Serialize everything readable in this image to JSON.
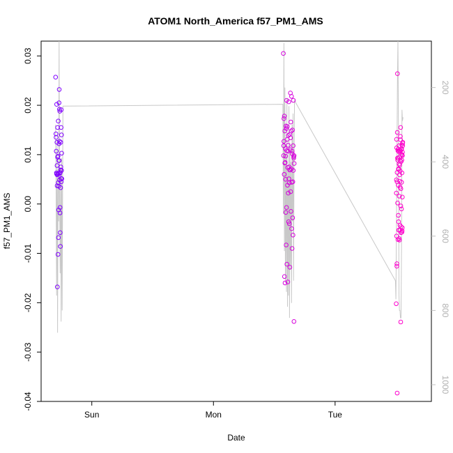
{
  "chart_data": {
    "type": "scatter",
    "title": "ATOM1 North_America f57_PM1_AMS",
    "xlabel": "Date",
    "ylabel": "f57_PM1_AMS",
    "x_ticks": [
      "Sun",
      "Mon",
      "Tue"
    ],
    "x_tick_positions_hours_after_sat_midnight": [
      24,
      48,
      72
    ],
    "xlim_hours": [
      14,
      91
    ],
    "ylim": [
      -0.04,
      0.033
    ],
    "y_ticks": [
      "0.03",
      "0.02",
      "0.01",
      "0.00",
      "-0.01",
      "-0.02",
      "-0.03",
      "-0.04"
    ],
    "y_tick_values": [
      0.03,
      0.02,
      0.01,
      0.0,
      -0.01,
      -0.02,
      -0.03,
      -0.04
    ],
    "y2_ticks": [
      "200",
      "400",
      "600",
      "800",
      "1000"
    ],
    "y2_tick_values": [
      200,
      400,
      600,
      800,
      1000
    ],
    "y2_lim": [
      1045,
      75
    ],
    "y2_inverted": true,
    "grid": false,
    "point_color_gradient": [
      "#7f00ff",
      "#ff00cc"
    ],
    "altitude_line_color": "#c8c8c8",
    "series": [
      {
        "points": [
          [
            16.86,
            0.0257
          ],
          [
            16.93,
            0.0142
          ],
          [
            16.98,
            0.0107
          ],
          [
            17.02,
            0.0063
          ],
          [
            17.07,
            0.0202
          ],
          [
            17.12,
            0.0125
          ],
          [
            17.16,
            0.0037
          ],
          [
            17.21,
            -0.0168
          ],
          [
            17.25,
            0.0155
          ],
          [
            17.29,
            0.0061
          ],
          [
            17.33,
            -0.0102
          ],
          [
            17.37,
            0.0043
          ],
          [
            17.41,
            -0.0068
          ],
          [
            17.45,
            -0.0012
          ],
          [
            17.49,
            0.0088
          ],
          [
            17.53,
            0.0205
          ],
          [
            17.57,
            0.0232
          ],
          [
            17.61,
            0.0192
          ],
          [
            17.65,
            0.0127
          ],
          [
            17.69,
            0.0062
          ],
          [
            17.73,
            -0.0018
          ],
          [
            17.77,
            -0.0058
          ],
          [
            17.81,
            -0.0086
          ],
          [
            17.85,
            0.0033
          ],
          [
            17.89,
            0.0075
          ],
          [
            17.93,
            0.0052
          ],
          [
            17.97,
            0.0191
          ],
          [
            18.01,
            0.014
          ],
          [
            18.05,
            0.0103
          ],
          [
            18.09,
            0.0051
          ],
          [
            16.95,
            0.0135
          ],
          [
            17.05,
            0.0061
          ],
          [
            17.15,
            0.0078
          ],
          [
            17.24,
            0.0095
          ],
          [
            17.34,
            0.0097
          ],
          [
            17.44,
            0.0062
          ],
          [
            17.54,
            0.0122
          ],
          [
            17.64,
            0.0049
          ],
          [
            17.74,
            -0.0007
          ],
          [
            17.84,
            0.0069
          ],
          [
            17.94,
            0.0155
          ],
          [
            18.03,
            0.0068
          ],
          [
            17.18,
            0.0059
          ],
          [
            17.38,
            0.0168
          ],
          [
            17.58,
            0.0088
          ],
          [
            17.78,
            0.0064
          ],
          [
            17.98,
            0.0045
          ],
          [
            17.48,
            0.0036
          ],
          [
            17.68,
            0.0188
          ],
          [
            17.88,
            0.0125
          ]
        ]
      },
      {
        "points": [
          [
            61.8,
            0.0305
          ],
          [
            61.86,
            0.0118
          ],
          [
            61.91,
            0.0173
          ],
          [
            61.96,
            0.006
          ],
          [
            62.02,
            -0.0147
          ],
          [
            62.07,
            0.0148
          ],
          [
            62.12,
            -0.016
          ],
          [
            62.18,
            0.0112
          ],
          [
            62.23,
            0.005
          ],
          [
            62.28,
            -0.0017
          ],
          [
            62.34,
            -0.0083
          ],
          [
            62.39,
            0.0153
          ],
          [
            62.44,
            0.021
          ],
          [
            62.5,
            -0.0122
          ],
          [
            62.55,
            0.0131
          ],
          [
            62.6,
            0.0038
          ],
          [
            62.66,
            -0.0158
          ],
          [
            62.71,
            0.0107
          ],
          [
            62.76,
            0.0022
          ],
          [
            62.82,
            -0.0036
          ],
          [
            62.87,
            0.0207
          ],
          [
            62.92,
            0.0075
          ],
          [
            62.98,
            -0.004
          ],
          [
            63.03,
            0.0141
          ],
          [
            63.08,
            -0.0128
          ],
          [
            63.14,
            0.0069
          ],
          [
            63.19,
            0.0225
          ],
          [
            63.24,
            0.0025
          ],
          [
            63.3,
            -0.0015
          ],
          [
            63.35,
            0.0148
          ],
          [
            63.4,
            0.0218
          ],
          [
            63.46,
            0.0044
          ],
          [
            63.51,
            -0.009
          ],
          [
            63.56,
            0.0102
          ],
          [
            63.62,
            -0.0028
          ],
          [
            63.67,
            0.0045
          ],
          [
            63.72,
            0.0118
          ],
          [
            63.78,
            0.021
          ],
          [
            63.83,
            0.0096
          ],
          [
            63.88,
            -0.0238
          ],
          [
            63.93,
            0.0082
          ],
          [
            61.83,
            0.0098
          ],
          [
            61.99,
            0.0178
          ],
          [
            62.15,
            0.0084
          ],
          [
            62.31,
            0.0158
          ],
          [
            62.47,
            0.0108
          ],
          [
            62.63,
            0.0074
          ],
          [
            62.79,
            0.0139
          ],
          [
            62.95,
            0.0043
          ],
          [
            63.11,
            0.011
          ],
          [
            63.27,
            0.0166
          ],
          [
            63.43,
            -0.005
          ],
          [
            63.59,
            0.015
          ],
          [
            63.75,
            0.0068
          ],
          [
            63.91,
            0.0098
          ],
          [
            62.09,
            0.0083
          ],
          [
            62.41,
            -0.0007
          ],
          [
            62.73,
            0.0119
          ],
          [
            63.05,
            0.0069
          ],
          [
            63.37,
            0.0071
          ],
          [
            63.69,
            -0.0063
          ],
          [
            61.89,
            0.0127
          ],
          [
            62.25,
            0.0097
          ],
          [
            62.57,
            0.0157
          ],
          [
            62.89,
            0.0051
          ],
          [
            63.21,
            0.0134
          ],
          [
            63.53,
            0.0107
          ],
          [
            63.85,
            0.0093
          ]
        ]
      },
      {
        "points": [
          [
            84.05,
            -0.0202
          ],
          [
            84.1,
            0.0049
          ],
          [
            84.15,
            0.0114
          ],
          [
            84.2,
            -0.0121
          ],
          [
            84.25,
            -0.0383
          ],
          [
            84.3,
            0.0264
          ],
          [
            84.35,
            0.0089
          ],
          [
            84.4,
            -0.0072
          ],
          [
            84.45,
            0.0038
          ],
          [
            84.5,
            0.0071
          ],
          [
            84.55,
            -0.0053
          ],
          [
            84.6,
            0.0118
          ],
          [
            84.65,
            0.0016
          ],
          [
            84.7,
            -0.0073
          ],
          [
            84.75,
            0.0079
          ],
          [
            84.8,
            -0.0043
          ],
          [
            84.85,
            0.0088
          ],
          [
            84.9,
            0.0108
          ],
          [
            84.95,
            -0.0239
          ],
          [
            85.0,
            -0.0058
          ],
          [
            85.05,
            0.0101
          ],
          [
            85.1,
            -0.001
          ],
          [
            85.15,
            0.012
          ],
          [
            85.2,
            0.0063
          ],
          [
            85.25,
            -0.0048
          ],
          [
            85.3,
            0.0105
          ],
          [
            85.35,
            0.0125
          ],
          [
            84.08,
            0.0022
          ],
          [
            84.18,
            -0.0126
          ],
          [
            84.28,
            0.0145
          ],
          [
            84.38,
            0.0108
          ],
          [
            84.48,
            -0.0023
          ],
          [
            84.58,
            0.0071
          ],
          [
            84.68,
            0.0095
          ],
          [
            84.78,
            -0.0053
          ],
          [
            84.88,
            0.0137
          ],
          [
            84.98,
            0.0031
          ],
          [
            85.08,
            0.011
          ],
          [
            85.18,
            -0.0057
          ],
          [
            85.28,
            0.0098
          ],
          [
            84.13,
            0.0131
          ],
          [
            84.23,
            0.0064
          ],
          [
            84.33,
            0.0002
          ],
          [
            84.43,
            0.0111
          ],
          [
            84.53,
            0.007
          ],
          [
            84.63,
            -0.007
          ],
          [
            84.73,
            0.0108
          ],
          [
            84.83,
            0.0067
          ],
          [
            84.93,
            0.0155
          ],
          [
            85.03,
            0.0086
          ],
          [
            85.13,
            0.0112
          ],
          [
            85.23,
            -0.0054
          ],
          [
            85.33,
            0.0118
          ],
          [
            84.22,
            0.0045
          ],
          [
            84.42,
            0.0093
          ],
          [
            84.62,
            0.0081
          ],
          [
            84.82,
            0.0034
          ],
          [
            85.02,
            -0.0046
          ],
          [
            85.22,
            0.01
          ],
          [
            84.52,
            -0.0036
          ],
          [
            84.72,
            0.0059
          ],
          [
            84.92,
            0.013
          ],
          [
            85.12,
            0.0044
          ],
          [
            85.32,
            0.0123
          ],
          [
            84.12,
            -0.0065
          ],
          [
            84.32,
            0.0093
          ],
          [
            84.57,
            0.0106
          ],
          [
            84.77,
            0.0046
          ],
          [
            84.97,
            -0.0004
          ],
          [
            85.17,
            0.0089
          ],
          [
            85.27,
            0.0014
          ]
        ]
      }
    ],
    "altitude_line": [
      [
        16.85,
        300
      ],
      [
        16.95,
        480
      ],
      [
        17.05,
        760
      ],
      [
        17.15,
        340
      ],
      [
        17.25,
        860
      ],
      [
        17.35,
        420
      ],
      [
        17.45,
        560
      ],
      [
        17.55,
        75
      ],
      [
        17.65,
        500
      ],
      [
        17.75,
        700
      ],
      [
        17.85,
        420
      ],
      [
        17.95,
        830
      ],
      [
        18.05,
        390
      ],
      [
        18.15,
        800
      ],
      [
        18.3,
        250
      ],
      [
        61.7,
        245
      ],
      [
        61.8,
        540
      ],
      [
        61.9,
        80
      ],
      [
        62.0,
        640
      ],
      [
        62.1,
        200
      ],
      [
        62.2,
        720
      ],
      [
        62.3,
        380
      ],
      [
        62.4,
        750
      ],
      [
        62.5,
        230
      ],
      [
        62.6,
        790
      ],
      [
        62.7,
        420
      ],
      [
        62.8,
        760
      ],
      [
        62.9,
        250
      ],
      [
        63.0,
        820
      ],
      [
        63.1,
        350
      ],
      [
        63.2,
        690
      ],
      [
        63.3,
        400
      ],
      [
        63.4,
        780
      ],
      [
        63.5,
        300
      ],
      [
        63.6,
        560
      ],
      [
        63.7,
        270
      ],
      [
        63.8,
        720
      ],
      [
        63.9,
        420
      ],
      [
        64.0,
        235
      ],
      [
        83.9,
        720
      ],
      [
        84.0,
        770
      ],
      [
        84.1,
        580
      ],
      [
        84.2,
        400
      ],
      [
        84.3,
        180
      ],
      [
        84.4,
        75
      ],
      [
        84.5,
        300
      ],
      [
        84.6,
        760
      ],
      [
        84.7,
        800
      ],
      [
        84.8,
        800
      ],
      [
        84.9,
        820
      ],
      [
        85.0,
        820
      ],
      [
        85.1,
        640
      ],
      [
        85.2,
        260
      ],
      [
        85.3,
        290
      ],
      [
        85.4,
        280
      ]
    ]
  }
}
